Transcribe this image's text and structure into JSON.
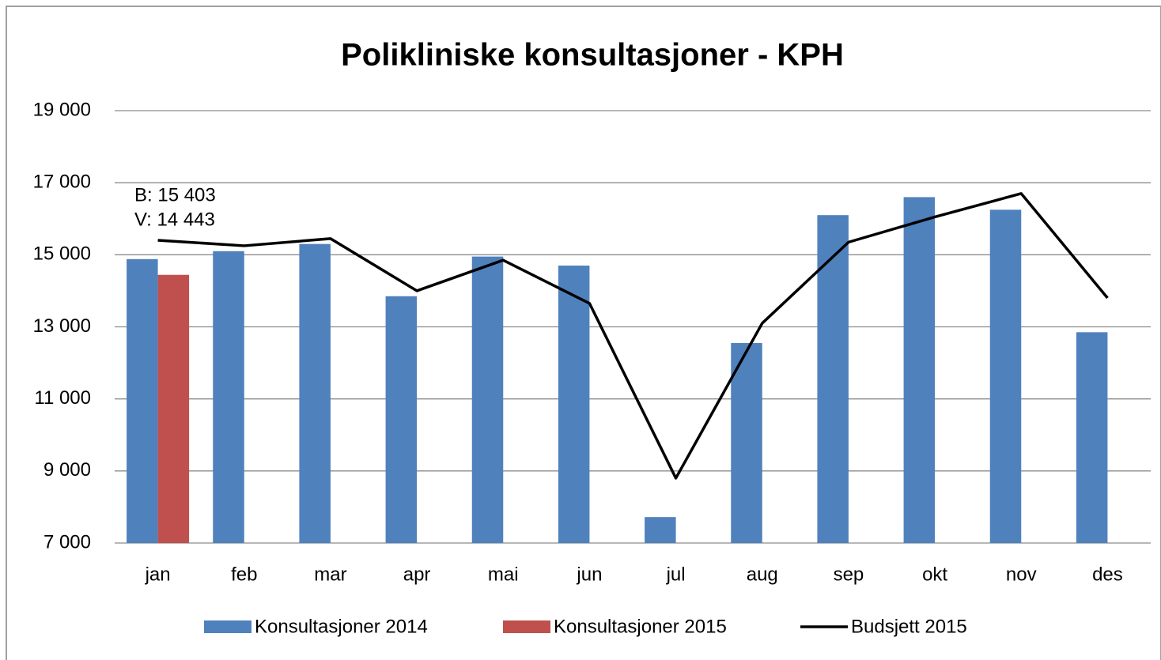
{
  "chart_data": {
    "type": "bar",
    "title": "Polikliniske konsultasjoner - KPH",
    "categories": [
      "jan",
      "feb",
      "mar",
      "apr",
      "mai",
      "jun",
      "jul",
      "aug",
      "sep",
      "okt",
      "nov",
      "des"
    ],
    "series": [
      {
        "name": "Konsultasjoner 2014",
        "type": "bar",
        "color": "#4f81bd",
        "values": [
          14880,
          15100,
          15300,
          13850,
          14950,
          14700,
          7720,
          12550,
          16100,
          16600,
          16250,
          12850
        ]
      },
      {
        "name": "Konsultasjoner 2015",
        "type": "bar",
        "color": "#c0504d",
        "values": [
          14443,
          null,
          null,
          null,
          null,
          null,
          null,
          null,
          null,
          null,
          null,
          null
        ]
      },
      {
        "name": "Budsjett 2015",
        "type": "line",
        "color": "#000000",
        "values": [
          15403,
          15250,
          15450,
          14000,
          14850,
          13650,
          8800,
          13100,
          15350,
          16050,
          16700,
          13800
        ]
      }
    ],
    "annotations": [
      "B: 15 403",
      "V: 14 443"
    ],
    "ylim": [
      7000,
      19000
    ],
    "yticks": [
      {
        "value": 7000,
        "label": "7 000"
      },
      {
        "value": 9000,
        "label": "9 000"
      },
      {
        "value": 11000,
        "label": "11 000"
      },
      {
        "value": 13000,
        "label": "13 000"
      },
      {
        "value": 15000,
        "label": "15 000"
      },
      {
        "value": 17000,
        "label": "17 000"
      },
      {
        "value": 19000,
        "label": "19 000"
      }
    ],
    "grid": true,
    "legend": "bottom"
  }
}
